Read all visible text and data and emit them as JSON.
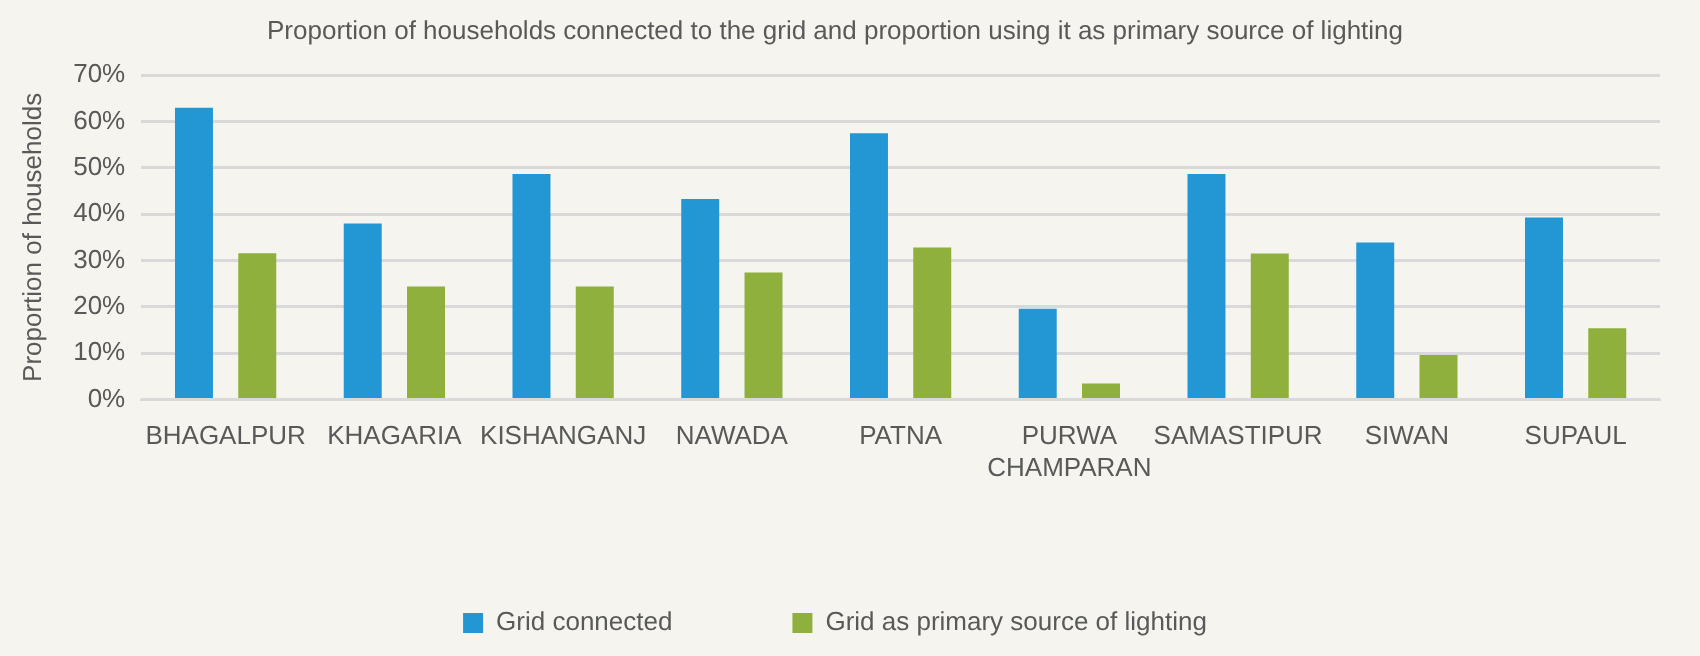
{
  "chart_data": {
    "type": "bar",
    "title": "Proportion of households connected to the grid and proportion using it as primary source of lighting",
    "ylabel": "Proportion of households",
    "categories": [
      "BHAGALPUR",
      "KHAGARIA",
      "KISHANGANJ",
      "NAWADA",
      "PATNA",
      "PURWA CHAMPARAN",
      "SAMASTIPUR",
      "SIWAN",
      "SUPAUL"
    ],
    "series": [
      {
        "name": "Grid connected",
        "color": "#2397d4",
        "values": [
          63,
          38,
          48.7,
          43.3,
          57.5,
          19.6,
          48.7,
          33.9,
          39.3
        ]
      },
      {
        "name": "Grid as primary source of lighting",
        "color": "#8fb03c",
        "values": [
          31.6,
          24.4,
          24.4,
          27.4,
          32.8,
          3.5,
          31.5,
          9.6,
          15.4
        ]
      }
    ],
    "ylim": [
      0,
      70
    ],
    "yticks": [
      {
        "value": 0,
        "label": "0%"
      },
      {
        "value": 10,
        "label": "10%"
      },
      {
        "value": 20,
        "label": "20%"
      },
      {
        "value": 30,
        "label": "30%"
      },
      {
        "value": 40,
        "label": "40%"
      },
      {
        "value": 50,
        "label": "50%"
      },
      {
        "value": 60,
        "label": "60%"
      },
      {
        "value": 70,
        "label": "70%"
      }
    ],
    "grid": "y",
    "legend": "bottom"
  }
}
